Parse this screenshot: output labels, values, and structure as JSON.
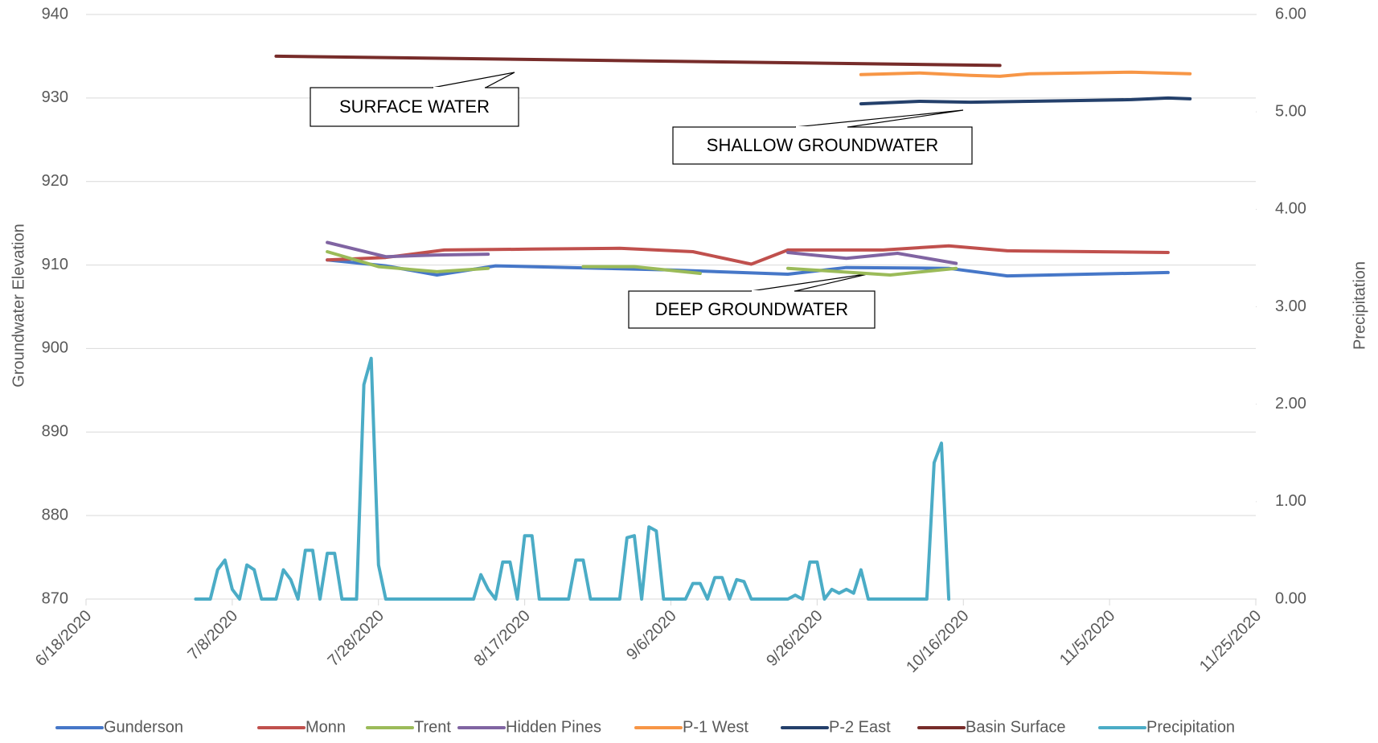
{
  "chart_data": {
    "type": "line",
    "y_label": "Groundwater Elevation",
    "y2_label": "Precipitation",
    "xlim": [
      "6/18/2020",
      "11/25/2020"
    ],
    "xticks": [
      "6/18/2020",
      "7/8/2020",
      "7/28/2020",
      "8/17/2020",
      "9/6/2020",
      "9/26/2020",
      "10/16/2020",
      "11/5/2020",
      "11/25/2020"
    ],
    "ylim": [
      870,
      940
    ],
    "yticks": [
      870,
      880,
      890,
      900,
      910,
      920,
      930,
      940
    ],
    "y2lim": [
      0,
      6
    ],
    "y2ticks": [
      {
        "value": 0,
        "label": "0.00"
      },
      {
        "value": 1,
        "label": "1.00"
      },
      {
        "value": 2,
        "label": "2.00"
      },
      {
        "value": 3,
        "label": "3.00"
      },
      {
        "value": 4,
        "label": "4.00"
      },
      {
        "value": 5,
        "label": "5.00"
      },
      {
        "value": 6,
        "label": "6.00"
      }
    ],
    "grid": true,
    "legend": "bottom",
    "annotations": [
      "SURFACE WATER",
      "SHALLOW GROUNDWATER",
      "DEEP GROUNDWATER"
    ],
    "series": [
      {
        "name": "Gunderson",
        "color": "#4677c8",
        "x": [
          "7/21/2020",
          "7/29/2020",
          "8/5/2020",
          "8/13/2020",
          "8/23/2020",
          "9/6/2020",
          "9/22/2020",
          "9/30/2020",
          "10/14/2020",
          "10/22/2020",
          "11/13/2020"
        ],
        "values": [
          910.6,
          909.9,
          908.8,
          909.9,
          909.7,
          909.4,
          908.9,
          909.7,
          909.6,
          908.7,
          909.1
        ]
      },
      {
        "name": "Monn",
        "color": "#c0504d",
        "x": [
          "7/21/2020",
          "7/29/2020",
          "8/6/2020",
          "8/18/2020",
          "8/30/2020",
          "9/9/2020",
          "9/17/2020",
          "9/22/2020",
          "10/5/2020",
          "10/14/2020",
          "10/22/2020",
          "11/13/2020"
        ],
        "values": [
          910.6,
          910.9,
          911.8,
          911.9,
          912.0,
          911.6,
          910.1,
          911.8,
          911.8,
          912.3,
          911.7,
          911.5
        ]
      },
      {
        "name": "Trent",
        "color": "#9bbb59",
        "x": [
          "7/21/2020",
          "7/28/2020",
          "8/5/2020",
          "8/12/2020",
          "8/18/2020",
          "8/25/2020",
          "9/1/2020",
          "9/10/2020",
          "9/16/2020",
          "9/22/2020",
          "10/6/2020",
          "10/15/2020"
        ],
        "values": [
          911.6,
          909.8,
          909.2,
          909.6,
          null,
          909.8,
          909.8,
          909.0,
          null,
          909.6,
          908.8,
          909.6
        ]
      },
      {
        "name": "Hidden Pines",
        "color": "#8064a2",
        "x": [
          "7/21/2020",
          "7/29/2020",
          "8/5/2020",
          "8/12/2020",
          "9/1/2020",
          "9/22/2020",
          "9/30/2020",
          "10/7/2020",
          "10/15/2020"
        ],
        "values": [
          912.7,
          911.0,
          911.2,
          911.3,
          null,
          911.5,
          910.8,
          911.4,
          910.2
        ]
      },
      {
        "name": "P-1 West",
        "color": "#f79646",
        "x": [
          "10/2/2020",
          "10/10/2020",
          "10/17/2020",
          "10/21/2020",
          "10/25/2020",
          "11/1/2020",
          "11/8/2020",
          "11/16/2020"
        ],
        "values": [
          932.8,
          933.0,
          932.7,
          932.6,
          932.9,
          933.0,
          933.1,
          932.9
        ]
      },
      {
        "name": "P-2 East",
        "color": "#24406b",
        "x": [
          "10/2/2020",
          "10/10/2020",
          "10/17/2020",
          "10/25/2020",
          "11/1/2020",
          "11/8/2020",
          "11/13/2020",
          "11/16/2020"
        ],
        "values": [
          929.3,
          929.6,
          929.5,
          929.6,
          929.7,
          929.8,
          930.0,
          929.9
        ]
      },
      {
        "name": "Basin Surface",
        "color": "#772c2a",
        "x": [
          "7/14/2020",
          "10/21/2020"
        ],
        "values": [
          935.0,
          933.9
        ]
      },
      {
        "name": "Precipitation",
        "color": "#4bacc6",
        "axis": "y2",
        "x": [
          "7/3/2020",
          "7/5/2020",
          "7/6/2020",
          "7/7/2020",
          "7/8/2020",
          "7/9/2020",
          "7/10/2020",
          "7/11/2020",
          "7/12/2020",
          "7/14/2020",
          "7/15/2020",
          "7/16/2020",
          "7/17/2020",
          "7/18/2020",
          "7/19/2020",
          "7/20/2020",
          "7/21/2020",
          "7/22/2020",
          "7/23/2020",
          "7/25/2020",
          "7/26/2020",
          "7/27/2020",
          "7/28/2020",
          "7/29/2020",
          "8/10/2020",
          "8/11/2020",
          "8/12/2020",
          "8/13/2020",
          "8/14/2020",
          "8/15/2020",
          "8/16/2020",
          "8/17/2020",
          "8/18/2020",
          "8/19/2020",
          "8/23/2020",
          "8/24/2020",
          "8/25/2020",
          "8/26/2020",
          "8/30/2020",
          "8/31/2020",
          "9/1/2020",
          "9/2/2020",
          "9/3/2020",
          "9/4/2020",
          "9/5/2020",
          "9/8/2020",
          "9/9/2020",
          "9/10/2020",
          "9/11/2020",
          "9/12/2020",
          "9/13/2020",
          "9/14/2020",
          "9/15/2020",
          "9/16/2020",
          "9/17/2020",
          "9/22/2020",
          "9/23/2020",
          "9/24/2020",
          "9/25/2020",
          "9/26/2020",
          "9/27/2020",
          "9/28/2020",
          "9/29/2020",
          "9/30/2020",
          "10/1/2020",
          "10/2/2020",
          "10/3/2020",
          "10/11/2020",
          "10/12/2020",
          "10/13/2020",
          "10/14/2020"
        ],
        "values": [
          0,
          0,
          0.3,
          0.4,
          0.1,
          0,
          0.35,
          0.3,
          0,
          0,
          0.3,
          0.2,
          0,
          0.5,
          0.5,
          0,
          0.47,
          0.47,
          0,
          0,
          2.2,
          2.47,
          0.35,
          0,
          0,
          0.25,
          0.1,
          0,
          0.38,
          0.38,
          0,
          0.65,
          0.65,
          0,
          0,
          0.4,
          0.4,
          0,
          0,
          0.63,
          0.65,
          0,
          0.74,
          0.7,
          0,
          0,
          0.16,
          0.16,
          0,
          0.22,
          0.22,
          0,
          0.2,
          0.18,
          0,
          0,
          0.04,
          0,
          0.38,
          0.38,
          0,
          0.1,
          0.06,
          0.1,
          0.06,
          0.3,
          0,
          0,
          1.4,
          1.6,
          0
        ]
      }
    ]
  }
}
